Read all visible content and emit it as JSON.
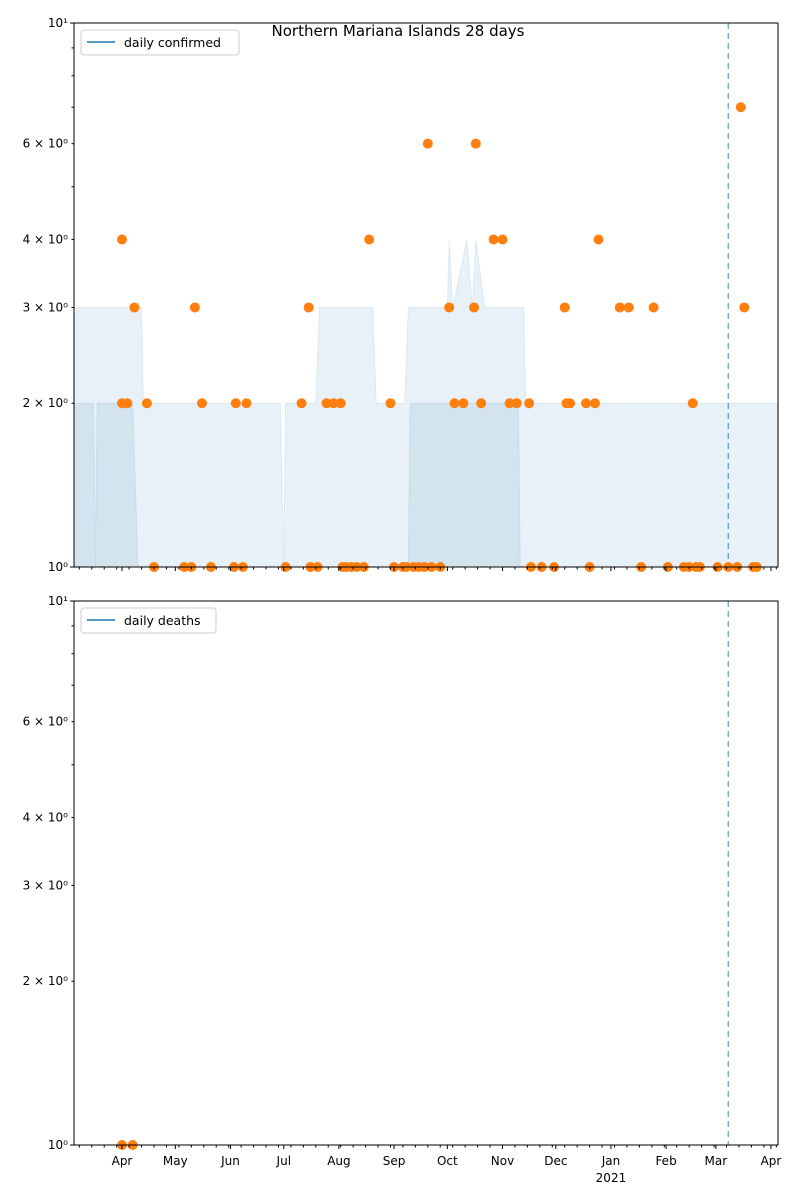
{
  "chart_data": [
    {
      "type": "scatter",
      "title": "Northern Mariana Islands 28 days",
      "yscale": "log",
      "ylim": [
        1,
        10
      ],
      "xlim": [
        "2020-03-05",
        "2021-04-05"
      ],
      "legend": {
        "label": "daily confirmed",
        "placement": "top-left",
        "color": "#1f77b4"
      },
      "point_color": "#ff7f0e",
      "band_color": "#1f77b4",
      "vline": {
        "date": "2021-03-08",
        "color": "#1f77b4",
        "style": "dashed"
      },
      "y_ticks": [
        {
          "value": 10,
          "label": "10¹"
        },
        {
          "value": 6,
          "label": "6 × 10⁰"
        },
        {
          "value": 4,
          "label": "4 × 10⁰"
        },
        {
          "value": 3,
          "label": "3 × 10⁰"
        },
        {
          "value": 2,
          "label": "2 × 10⁰"
        },
        {
          "value": 1,
          "label": "10⁰"
        }
      ],
      "band_outer": [
        [
          "2020-03-05",
          3
        ],
        [
          "2020-04-12",
          3
        ],
        [
          "2020-04-13",
          2
        ],
        [
          "2020-06-29",
          2
        ],
        [
          "2020-07-01",
          1
        ],
        [
          "2020-07-02",
          2
        ],
        [
          "2020-07-19",
          2
        ],
        [
          "2020-07-21",
          3
        ],
        [
          "2020-08-20",
          3
        ],
        [
          "2020-08-22",
          2
        ],
        [
          "2020-09-07",
          2
        ],
        [
          "2020-09-09",
          3
        ],
        [
          "2020-10-01",
          3
        ],
        [
          "2020-10-02",
          4
        ],
        [
          "2020-10-04",
          3
        ],
        [
          "2020-10-12",
          4
        ],
        [
          "2020-10-15",
          3
        ],
        [
          "2020-10-17",
          4
        ],
        [
          "2020-10-22",
          3
        ],
        [
          "2020-11-13",
          3
        ],
        [
          "2020-11-14",
          2
        ],
        [
          "2021-04-05",
          2
        ]
      ],
      "band_inner": [
        [
          "2020-03-05",
          2
        ],
        [
          "2020-03-16",
          2
        ],
        [
          "2020-03-17",
          1
        ],
        [
          "2020-03-18",
          2
        ],
        [
          "2020-04-07",
          2
        ],
        [
          "2020-04-10",
          1
        ],
        [
          "2020-09-09",
          1
        ],
        [
          "2020-09-10",
          2
        ],
        [
          "2020-11-10",
          2
        ],
        [
          "2020-11-11",
          1
        ],
        [
          "2021-04-05",
          1
        ]
      ],
      "points": [
        [
          "2020-04-01",
          4
        ],
        [
          "2020-08-18",
          4
        ],
        [
          "2020-12-25",
          4
        ],
        [
          "2020-10-27",
          4
        ],
        [
          "2020-11-01",
          4
        ],
        [
          "2020-09-20",
          6
        ],
        [
          "2020-10-17",
          6
        ],
        [
          "2021-03-15",
          7
        ],
        [
          "2020-04-08",
          3
        ],
        [
          "2020-05-12",
          3
        ],
        [
          "2020-07-15",
          3
        ],
        [
          "2020-10-02",
          3
        ],
        [
          "2020-10-16",
          3
        ],
        [
          "2020-12-06",
          3
        ],
        [
          "2021-01-06",
          3
        ],
        [
          "2021-01-11",
          3
        ],
        [
          "2021-01-25",
          3
        ],
        [
          "2021-03-17",
          3
        ],
        [
          "2020-04-01",
          2
        ],
        [
          "2020-04-04",
          2
        ],
        [
          "2020-04-15",
          2
        ],
        [
          "2020-05-16",
          2
        ],
        [
          "2020-06-04",
          2
        ],
        [
          "2020-06-10",
          2
        ],
        [
          "2020-07-11",
          2
        ],
        [
          "2020-07-25",
          2
        ],
        [
          "2020-07-29",
          2
        ],
        [
          "2020-08-02",
          2
        ],
        [
          "2020-08-30",
          2
        ],
        [
          "2020-10-05",
          2
        ],
        [
          "2020-10-10",
          2
        ],
        [
          "2020-10-20",
          2
        ],
        [
          "2020-11-05",
          2
        ],
        [
          "2020-11-09",
          2
        ],
        [
          "2020-11-16",
          2
        ],
        [
          "2020-12-07",
          2
        ],
        [
          "2020-12-09",
          2
        ],
        [
          "2020-12-18",
          2
        ],
        [
          "2020-12-23",
          2
        ],
        [
          "2021-02-16",
          2
        ],
        [
          "2020-04-19",
          1
        ],
        [
          "2020-05-06",
          1
        ],
        [
          "2020-05-10",
          1
        ],
        [
          "2020-05-21",
          1
        ],
        [
          "2020-06-03",
          1
        ],
        [
          "2020-06-08",
          1
        ],
        [
          "2020-07-02",
          1
        ],
        [
          "2020-07-16",
          1
        ],
        [
          "2020-07-20",
          1
        ],
        [
          "2020-08-03",
          1
        ],
        [
          "2020-08-05",
          1
        ],
        [
          "2020-08-08",
          1
        ],
        [
          "2020-08-11",
          1
        ],
        [
          "2020-08-15",
          1
        ],
        [
          "2020-09-01",
          1
        ],
        [
          "2020-09-06",
          1
        ],
        [
          "2020-09-08",
          1
        ],
        [
          "2020-09-12",
          1
        ],
        [
          "2020-09-15",
          1
        ],
        [
          "2020-09-18",
          1
        ],
        [
          "2020-09-22",
          1
        ],
        [
          "2020-09-27",
          1
        ],
        [
          "2020-11-17",
          1
        ],
        [
          "2020-11-23",
          1
        ],
        [
          "2020-11-30",
          1
        ],
        [
          "2020-12-20",
          1
        ],
        [
          "2021-01-18",
          1
        ],
        [
          "2021-02-02",
          1
        ],
        [
          "2021-02-11",
          1
        ],
        [
          "2021-02-14",
          1
        ],
        [
          "2021-02-18",
          1
        ],
        [
          "2021-02-20",
          1
        ],
        [
          "2021-03-02",
          1
        ],
        [
          "2021-03-08",
          1
        ],
        [
          "2021-03-13",
          1
        ],
        [
          "2021-03-22",
          1
        ],
        [
          "2021-03-24",
          1
        ]
      ]
    },
    {
      "type": "scatter",
      "title": "",
      "yscale": "log",
      "ylim": [
        1,
        10
      ],
      "xlim": [
        "2020-03-05",
        "2021-04-05"
      ],
      "legend": {
        "label": "daily deaths",
        "placement": "top-left",
        "color": "#1f77b4"
      },
      "point_color": "#ff7f0e",
      "vline": {
        "date": "2021-03-08",
        "color": "#1f77b4",
        "style": "dashed"
      },
      "y_ticks": [
        {
          "value": 10,
          "label": "10¹"
        },
        {
          "value": 6,
          "label": "6 × 10⁰"
        },
        {
          "value": 4,
          "label": "4 × 10⁰"
        },
        {
          "value": 3,
          "label": "3 × 10⁰"
        },
        {
          "value": 2,
          "label": "2 × 10⁰"
        },
        {
          "value": 1,
          "label": "10⁰"
        }
      ],
      "band_outer": [],
      "band_inner": [],
      "points": [
        [
          "2020-04-01",
          1
        ],
        [
          "2020-04-07",
          1
        ]
      ],
      "x_ticks": [
        {
          "date": "2020-04-01",
          "label": "Apr"
        },
        {
          "date": "2020-05-01",
          "label": "May"
        },
        {
          "date": "2020-06-01",
          "label": "Jun"
        },
        {
          "date": "2020-07-01",
          "label": "Jul"
        },
        {
          "date": "2020-08-01",
          "label": "Aug"
        },
        {
          "date": "2020-09-01",
          "label": "Sep"
        },
        {
          "date": "2020-10-01",
          "label": "Oct"
        },
        {
          "date": "2020-11-01",
          "label": "Nov"
        },
        {
          "date": "2020-12-01",
          "label": "Dec"
        },
        {
          "date": "2021-01-01",
          "label": "Jan",
          "sublabel": "2021"
        },
        {
          "date": "2021-02-01",
          "label": "Feb"
        },
        {
          "date": "2021-03-01",
          "label": "Mar"
        },
        {
          "date": "2021-04-01",
          "label": "Apr"
        }
      ]
    }
  ]
}
